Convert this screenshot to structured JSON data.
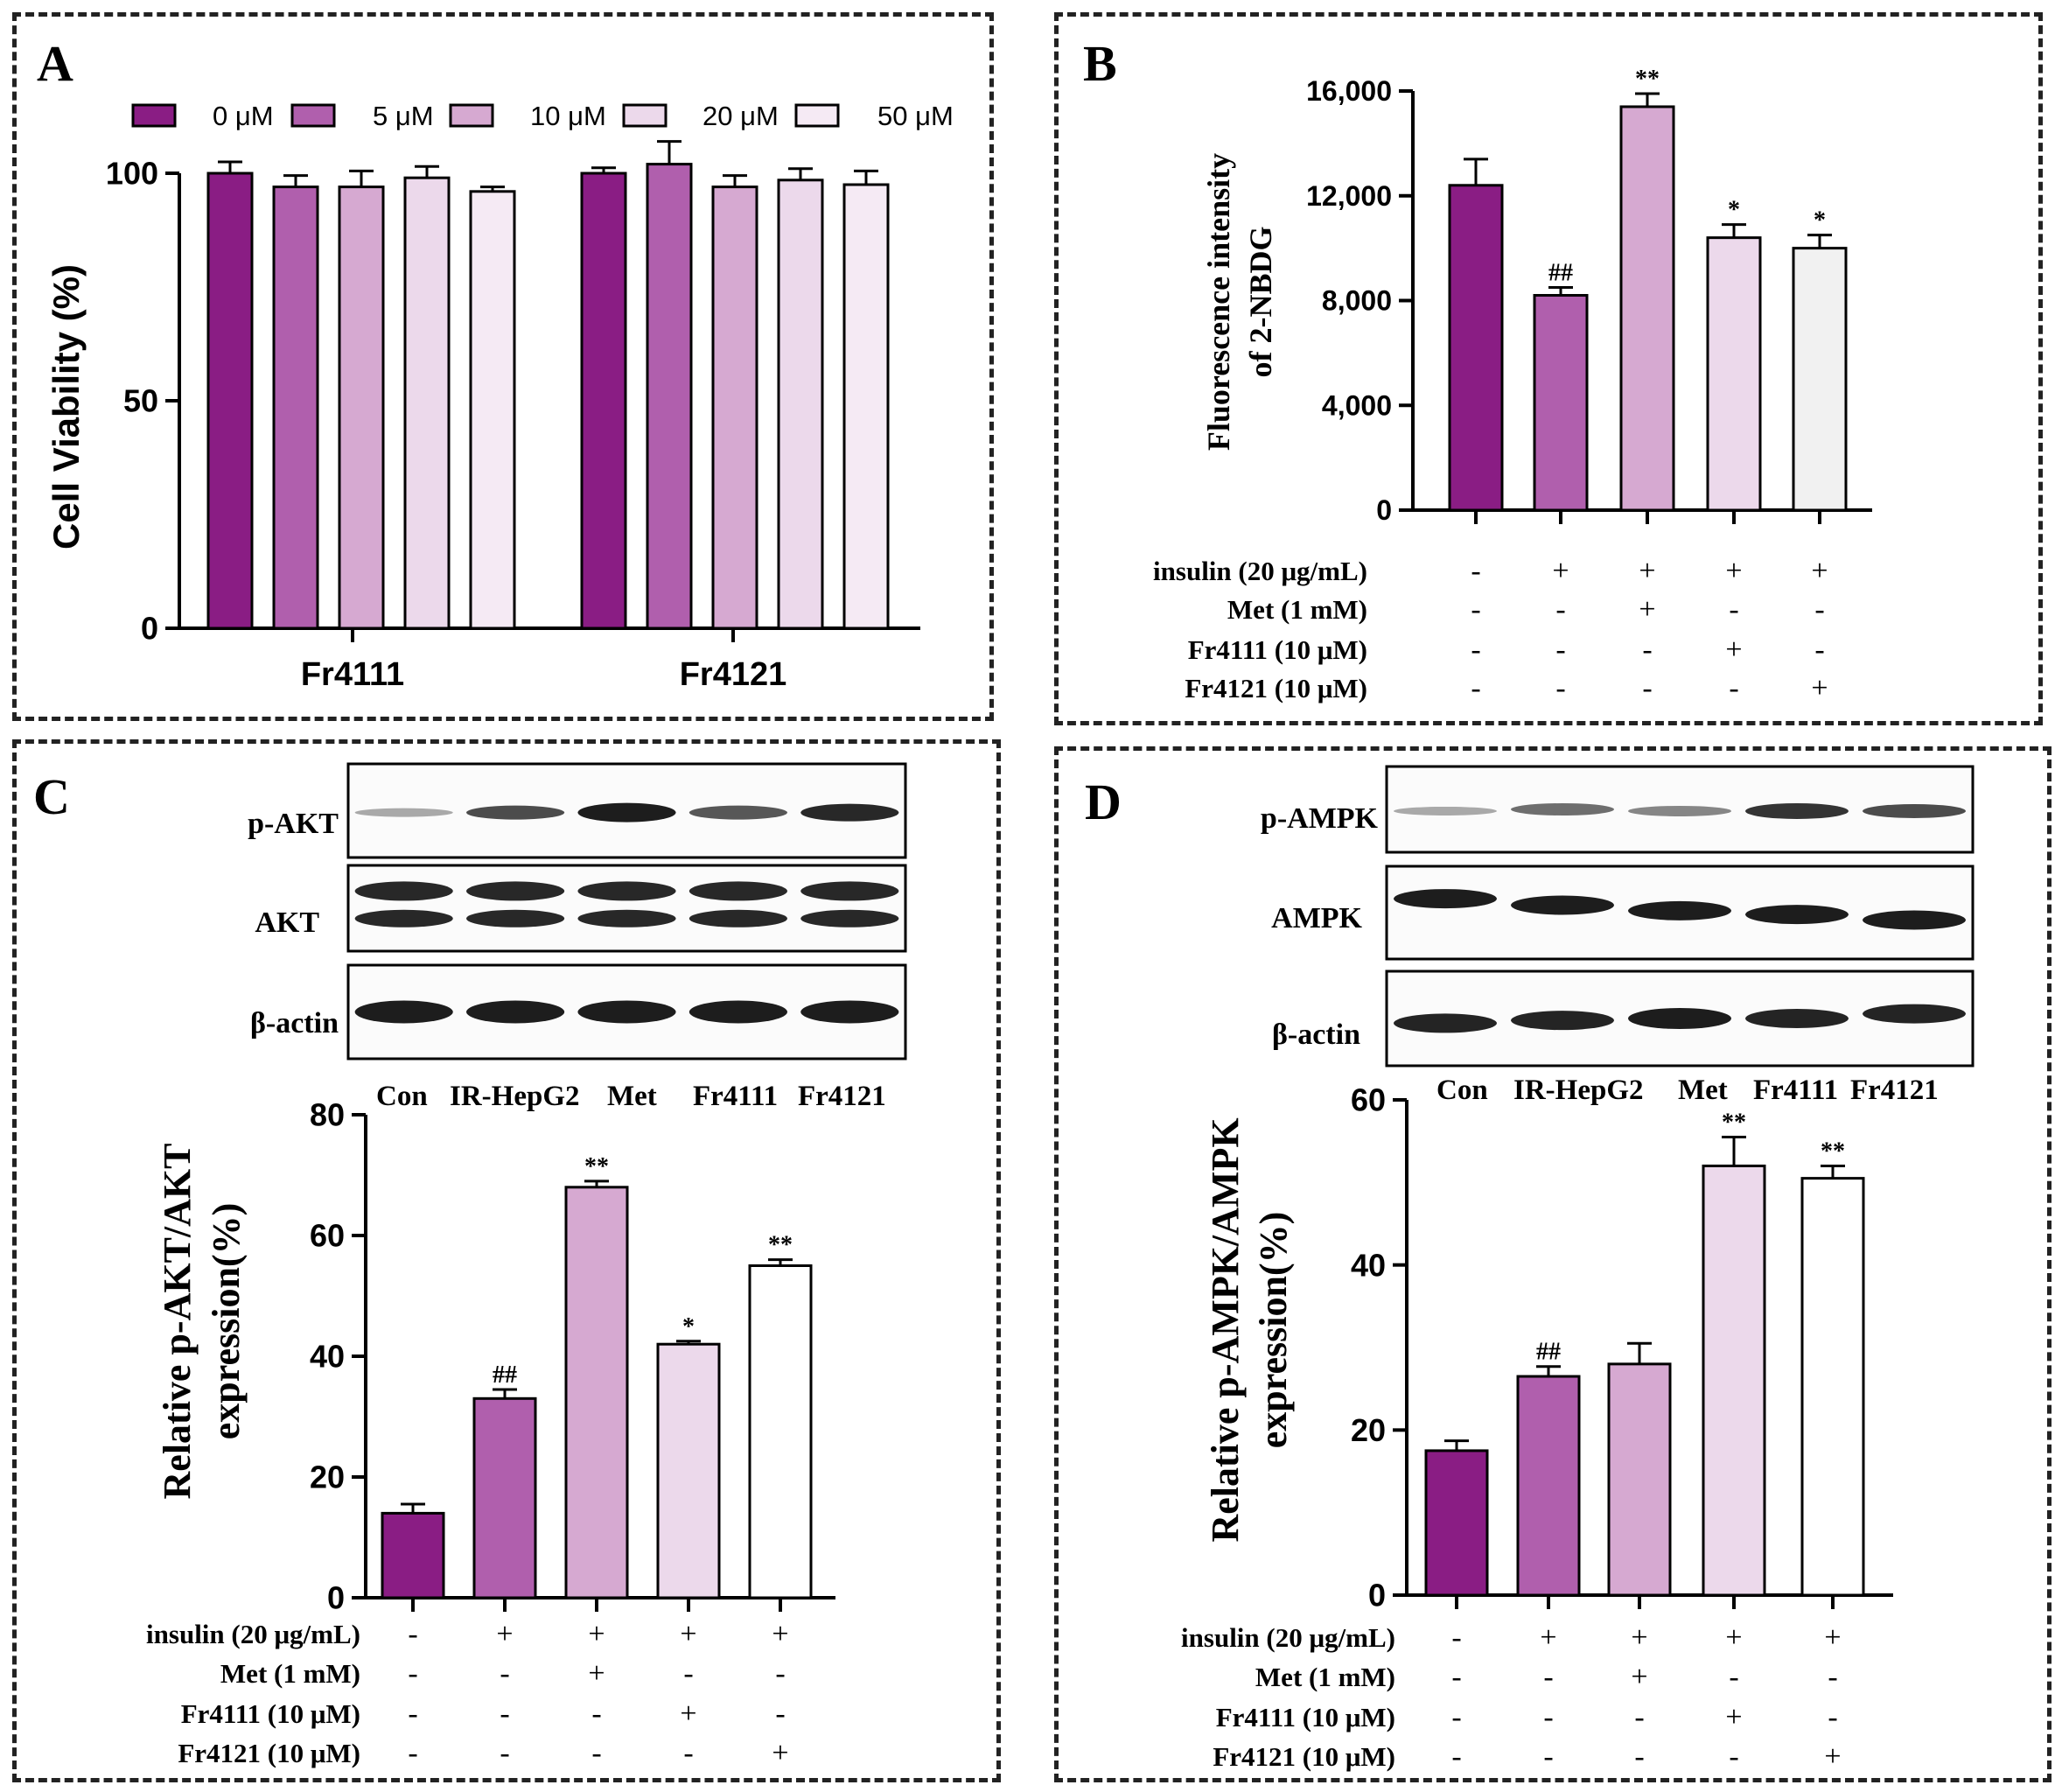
{
  "colors": {
    "c0": "#8a1d84",
    "c1": "#b05fad",
    "c2": "#d6a9d1",
    "c3": "#ecd9eb",
    "c4": "#f5eaf4",
    "white": "#ffffff",
    "b4": "#f1f1f1"
  },
  "panelA": {
    "letter": "A",
    "chart_data": {
      "type": "bar",
      "title": "",
      "ylabel": "Cell Viability (%)",
      "xlabel": "",
      "ylim": [
        0,
        100
      ],
      "yticks": [
        "0",
        "50",
        "100"
      ],
      "categories": [
        "Fr4111",
        "Fr4121"
      ],
      "series": [
        {
          "name": "0 μM",
          "values": [
            100,
            100
          ],
          "errors": [
            2.5,
            1.2
          ]
        },
        {
          "name": "5 μM",
          "values": [
            97,
            102
          ],
          "errors": [
            2.5,
            5
          ]
        },
        {
          "name": "10 μM",
          "values": [
            97,
            97
          ],
          "errors": [
            3.5,
            2.5
          ]
        },
        {
          "name": "20 μM",
          "values": [
            99,
            98.5
          ],
          "errors": [
            2.5,
            2.5
          ]
        },
        {
          "name": "50 μM",
          "values": [
            96,
            97.5
          ],
          "errors": [
            1,
            3
          ]
        }
      ]
    }
  },
  "panelB": {
    "letter": "B",
    "chart_data": {
      "type": "bar",
      "ylabel_lines": [
        "Fluorescence intensity",
        "of 2-NBDG"
      ],
      "ylim": [
        0,
        16000
      ],
      "yticks": [
        "0",
        "4,000",
        "8,000",
        "12,000",
        "16,000"
      ],
      "values": [
        12400,
        8200,
        15400,
        10400,
        10000
      ],
      "errors": [
        1000,
        300,
        500,
        500,
        500
      ],
      "annotations": [
        "",
        "##",
        "**",
        "*",
        "*"
      ]
    },
    "conditions": [
      {
        "label": "insulin (20 μg/mL)",
        "signs": [
          "-",
          "+",
          "+",
          "+",
          "+"
        ]
      },
      {
        "label": "Met (1 mM)",
        "signs": [
          "-",
          "-",
          "+",
          "-",
          "-"
        ]
      },
      {
        "label": "Fr4111 (10 μM)",
        "signs": [
          "-",
          "-",
          "-",
          "+",
          "-"
        ]
      },
      {
        "label": "Fr4121 (10 μM)",
        "signs": [
          "-",
          "-",
          "-",
          "-",
          "+"
        ]
      }
    ]
  },
  "panelC": {
    "letter": "C",
    "blot_labels": [
      "p-AKT",
      "AKT",
      "β-actin"
    ],
    "lanes": [
      "Con",
      "IR-HepG2",
      "Met",
      "Fr4111",
      "Fr4121"
    ],
    "chart_data": {
      "type": "bar",
      "ylabel_lines": [
        "Relative p-AKT/AKT",
        "expression(%)"
      ],
      "ylim": [
        0,
        80
      ],
      "yticks": [
        "0",
        "20",
        "40",
        "60",
        "80"
      ],
      "values": [
        14,
        33,
        68,
        42,
        55
      ],
      "errors": [
        1.5,
        1.5,
        1,
        0.5,
        1
      ],
      "annotations": [
        "",
        "##",
        "**",
        "*",
        "**"
      ]
    },
    "conditions": [
      {
        "label": "insulin (20 μg/mL)",
        "signs": [
          "-",
          "+",
          "+",
          "+",
          "+"
        ]
      },
      {
        "label": "Met (1 mM)",
        "signs": [
          "-",
          "-",
          "+",
          "-",
          "-"
        ]
      },
      {
        "label": "Fr4111 (10 μM)",
        "signs": [
          "-",
          "-",
          "-",
          "+",
          "-"
        ]
      },
      {
        "label": "Fr4121 (10 μM)",
        "signs": [
          "-",
          "-",
          "-",
          "-",
          "+"
        ]
      }
    ]
  },
  "panelD": {
    "letter": "D",
    "blot_labels": [
      "p-AMPK",
      "AMPK",
      "β-actin"
    ],
    "lanes": [
      "Con",
      "IR-HepG2",
      "Met",
      "Fr4111",
      "Fr4121"
    ],
    "chart_data": {
      "type": "bar",
      "ylabel_lines": [
        "Relative p-AMPK/AMPK",
        "expression(%)"
      ],
      "ylim": [
        0,
        60
      ],
      "yticks": [
        "0",
        "20",
        "40",
        "60"
      ],
      "values": [
        17.5,
        26.5,
        28,
        52,
        50.5
      ],
      "errors": [
        1.2,
        1.2,
        2.5,
        3.5,
        1.5
      ],
      "annotations": [
        "",
        "##",
        "",
        "**",
        "**"
      ]
    },
    "conditions": [
      {
        "label": "insulin (20 μg/mL)",
        "signs": [
          "-",
          "+",
          "+",
          "+",
          "+"
        ]
      },
      {
        "label": "Met (1 mM)",
        "signs": [
          "-",
          "-",
          "+",
          "-",
          "-"
        ]
      },
      {
        "label": "Fr4111 (10 μM)",
        "signs": [
          "-",
          "-",
          "-",
          "+",
          "-"
        ]
      },
      {
        "label": "Fr4121 (10 μM)",
        "signs": [
          "-",
          "-",
          "-",
          "-",
          "+"
        ]
      }
    ]
  }
}
